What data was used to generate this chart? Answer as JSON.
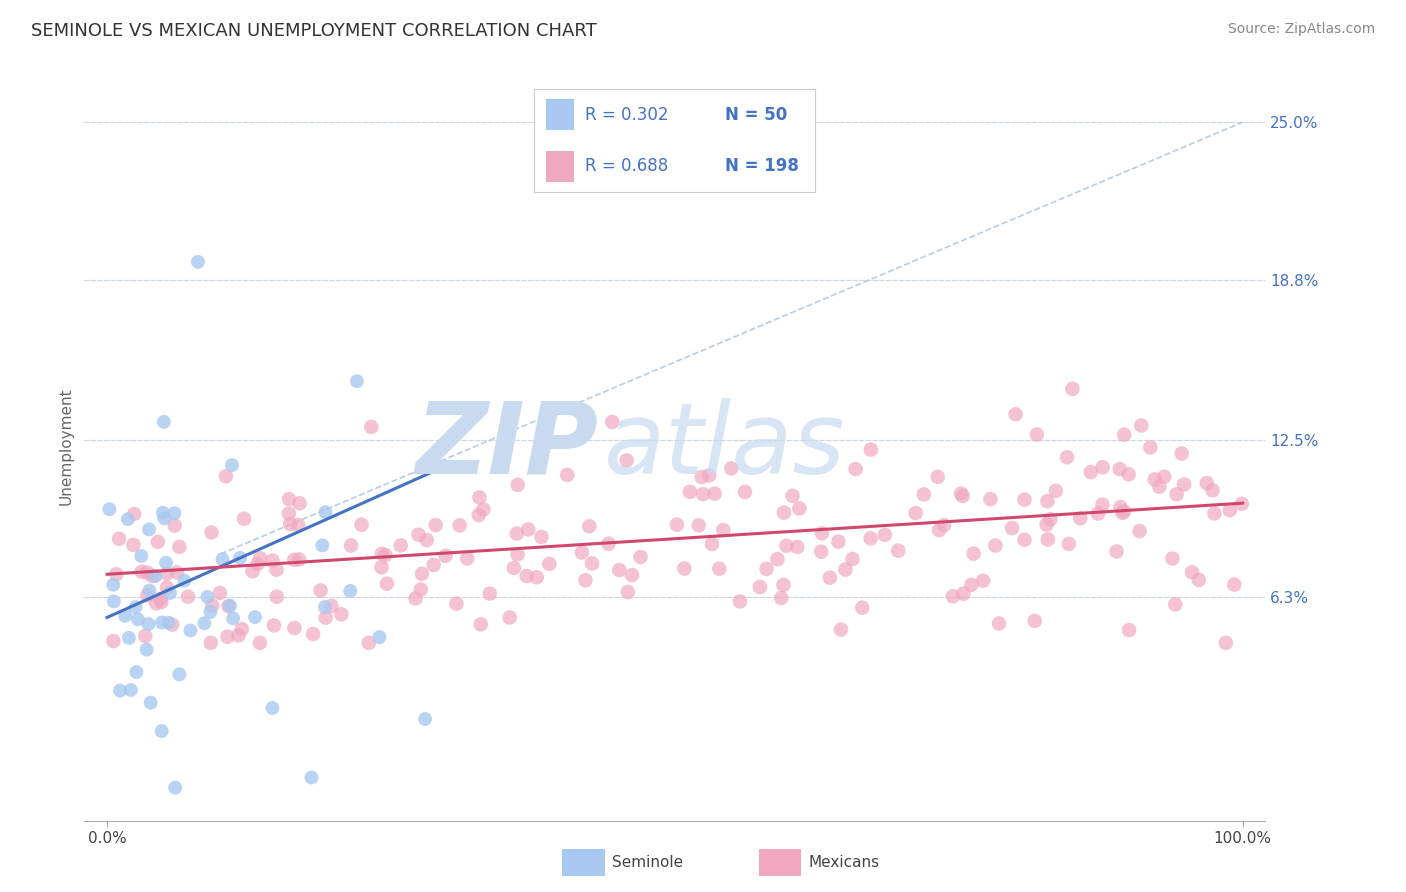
{
  "title": "SEMINOLE VS MEXICAN UNEMPLOYMENT CORRELATION CHART",
  "source_text": "Source: ZipAtlas.com",
  "ylabel": "Unemployment",
  "xlim": [
    -2,
    102
  ],
  "ylim": [
    -2.5,
    27.0
  ],
  "yticks": [
    6.3,
    12.5,
    18.8,
    25.0
  ],
  "ytick_labels": [
    "6.3%",
    "12.5%",
    "18.8%",
    "25.0%"
  ],
  "xtick_vals": [
    0,
    100
  ],
  "xtick_labels": [
    "0.0%",
    "100.0%"
  ],
  "seminole_color": "#a8c8f0",
  "mexican_color": "#f0a8c0",
  "trend_seminole_color": "#4472c4",
  "trend_mexican_color": "#d04870",
  "dash_color": "#b0c8e0",
  "grid_color": "#d0d8e0",
  "background_color": "#ffffff",
  "watermark_zip": "ZIP",
  "watermark_atlas": "atlas",
  "watermark_color": "#c8daf0",
  "legend_R_seminole": "R = 0.302",
  "legend_N_seminole": "N = 50",
  "legend_R_mexican": "R = 0.688",
  "legend_N_mexican": "N = 198",
  "seminole_N": 50,
  "mexican_N": 198,
  "title_fontsize": 13,
  "axis_label_fontsize": 11,
  "tick_fontsize": 11,
  "legend_fontsize": 13,
  "source_fontsize": 10,
  "seminole_trend_x": [
    0,
    30
  ],
  "seminole_trend_y": [
    5.5,
    11.5
  ],
  "mexican_trend_x": [
    0,
    100
  ],
  "mexican_trend_y": [
    7.2,
    10.0
  ],
  "dash_line_x": [
    10,
    100
  ],
  "dash_line_y": [
    8,
    25
  ]
}
